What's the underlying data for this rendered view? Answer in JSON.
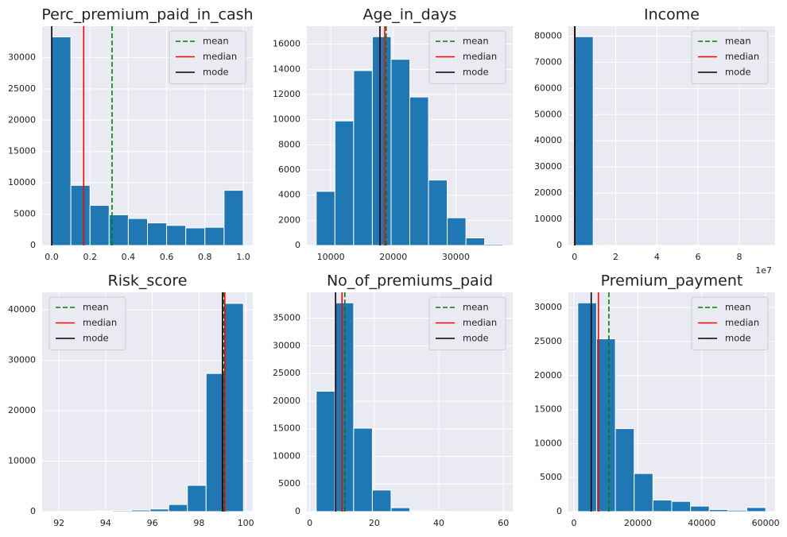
{
  "chart_data": [
    {
      "type": "histogram",
      "title": "Perc_premium_paid_in_cash",
      "color": "#1f77b4",
      "grid": true,
      "legend": "upper right",
      "bins": [
        0,
        0.1,
        0.2,
        0.3,
        0.4,
        0.5,
        0.6,
        0.7,
        0.8,
        0.9,
        1.0
      ],
      "values": [
        33300,
        9600,
        6400,
        4900,
        4300,
        3600,
        3200,
        2800,
        2900,
        8800
      ],
      "xlim": [
        -0.05,
        1.05
      ],
      "xticks": [
        {
          "value": 0,
          "label": "0.0"
        },
        0.2,
        0.4,
        0.6,
        0.8,
        {
          "value": 1,
          "label": "1.0"
        }
      ],
      "ylim": [
        0,
        35000
      ],
      "yticks": [
        0,
        5000,
        10000,
        15000,
        20000,
        25000,
        30000
      ],
      "reference_lines": [
        {
          "name": "mean",
          "color": "green",
          "dashed": true,
          "value": 0.315
        },
        {
          "name": "median",
          "color": "red",
          "dashed": false,
          "value": 0.167
        },
        {
          "name": "mode",
          "color": "black",
          "dashed": false,
          "value": 0
        }
      ]
    },
    {
      "type": "histogram",
      "title": "Age_in_days",
      "color": "#1f77b4",
      "grid": true,
      "legend": "upper right",
      "bins": [
        7670,
        10663,
        13656,
        16649,
        19642,
        22635,
        25628,
        28621,
        31614,
        34607,
        37600
      ],
      "values": [
        4300,
        9900,
        13900,
        16600,
        14800,
        11800,
        5200,
        2200,
        600,
        100
      ],
      "xlim": [
        6170,
        39100
      ],
      "xticks": [
        10000,
        20000,
        30000
      ],
      "ylim": [
        0,
        17430
      ],
      "yticks": [
        0,
        2000,
        4000,
        6000,
        8000,
        10000,
        12000,
        14000,
        16000
      ],
      "reference_lines": [
        {
          "name": "mean",
          "color": "green",
          "dashed": true,
          "value": 18850
        },
        {
          "name": "median",
          "color": "red",
          "dashed": false,
          "value": 18630
        },
        {
          "name": "mode",
          "color": "black",
          "dashed": false,
          "value": 17860
        }
      ]
    },
    {
      "type": "histogram",
      "title": "Income",
      "color": "#1f77b4",
      "grid": true,
      "legend": "upper right",
      "x_offset_label": "1e7",
      "bins": [
        0.0024,
        0.9048,
        1.8072,
        2.7096,
        3.612,
        4.5144,
        5.4168,
        6.3192,
        7.2216,
        8.124,
        9.0264
      ],
      "values": [
        79800,
        50,
        20,
        5,
        3,
        2,
        0,
        0,
        0,
        2
      ],
      "xlim": [
        -0.3,
        9.74
      ],
      "xticks": [
        0,
        2,
        4,
        6,
        8
      ],
      "ylim": [
        0,
        83790
      ],
      "yticks": [
        0,
        10000,
        20000,
        30000,
        40000,
        50000,
        60000,
        70000,
        80000
      ],
      "reference_lines": [
        {
          "name": "mean",
          "color": "green",
          "dashed": true,
          "value": 0.0208
        },
        {
          "name": "median",
          "color": "red",
          "dashed": false,
          "value": 0.0167
        },
        {
          "name": "mode",
          "color": "black",
          "dashed": false,
          "value": 0.0072
        }
      ]
    },
    {
      "type": "histogram",
      "title": "Risk_score",
      "color": "#1f77b4",
      "grid": true,
      "legend": "upper left",
      "bins": [
        91.9,
        92.7,
        93.5,
        94.3,
        95.1,
        95.9,
        96.7,
        97.5,
        98.3,
        99.1,
        99.9
      ],
      "values": [
        50,
        50,
        100,
        200,
        300,
        500,
        1400,
        5200,
        27400,
        41300
      ],
      "xlim": [
        91.28,
        100.3
      ],
      "xticks": [
        92,
        94,
        96,
        98,
        100
      ],
      "ylim": [
        0,
        43500
      ],
      "yticks": [
        0,
        10000,
        20000,
        30000,
        40000
      ],
      "reference_lines": [
        {
          "name": "mean",
          "color": "green",
          "dashed": true,
          "value": 99.06
        },
        {
          "name": "median",
          "color": "red",
          "dashed": false,
          "value": 99.1
        },
        {
          "name": "mode",
          "color": "black",
          "dashed": false,
          "value": 99.0
        }
      ]
    },
    {
      "type": "histogram",
      "title": "No_of_premiums_paid",
      "color": "#1f77b4",
      "grid": true,
      "legend": "upper right",
      "bins": [
        2,
        7.8,
        13.6,
        19.4,
        25.2,
        31,
        36.8,
        42.6,
        48.4,
        54.2,
        60
      ],
      "values": [
        21800,
        37800,
        15100,
        3900,
        700,
        150,
        30,
        10,
        5,
        2
      ],
      "xlim": [
        -0.9,
        62.9
      ],
      "xticks": [
        0,
        20,
        40,
        60
      ],
      "ylim": [
        0,
        39700
      ],
      "yticks": [
        0,
        5000,
        10000,
        15000,
        20000,
        25000,
        30000,
        35000
      ],
      "reference_lines": [
        {
          "name": "mean",
          "color": "green",
          "dashed": true,
          "value": 10.86
        },
        {
          "name": "median",
          "color": "red",
          "dashed": false,
          "value": 10
        },
        {
          "name": "mode",
          "color": "black",
          "dashed": false,
          "value": 8
        }
      ]
    },
    {
      "type": "histogram",
      "title": "Premium_payment",
      "color": "#1f77b4",
      "grid": true,
      "legend": "upper right",
      "bins": [
        1200,
        7080,
        12960,
        18840,
        24720,
        30600,
        36480,
        42360,
        48240,
        54120,
        60000
      ],
      "values": [
        30700,
        25400,
        12200,
        5600,
        1700,
        1500,
        800,
        300,
        200,
        600
      ],
      "xlim": [
        -1740,
        62940
      ],
      "xticks": [
        0,
        20000,
        40000,
        60000
      ],
      "ylim": [
        0,
        32240
      ],
      "yticks": [
        0,
        5000,
        10000,
        15000,
        20000,
        25000,
        30000
      ],
      "reference_lines": [
        {
          "name": "mean",
          "color": "green",
          "dashed": true,
          "value": 10925
        },
        {
          "name": "median",
          "color": "red",
          "dashed": false,
          "value": 7650
        },
        {
          "name": "mode",
          "color": "black",
          "dashed": false,
          "value": 5400
        }
      ]
    }
  ]
}
